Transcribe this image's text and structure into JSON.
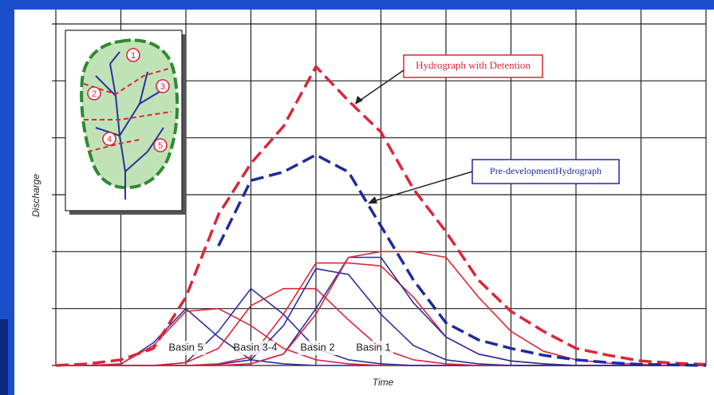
{
  "chart_data": {
    "type": "line",
    "xlabel": "Time",
    "ylabel": "Discharge",
    "xlim": [
      0,
      10
    ],
    "ylim": [
      0,
      6
    ],
    "grid": true,
    "x": [
      0,
      0.5,
      1,
      1.5,
      2,
      2.5,
      3,
      3.5,
      4,
      4.5,
      5,
      5.5,
      6,
      6.5,
      7,
      7.5,
      8,
      8.5,
      9,
      9.5,
      10
    ],
    "series": [
      {
        "name": "Hydrograph with Detention",
        "color": "#d9263a",
        "dashed": true,
        "values": [
          0,
          0.03,
          0.1,
          0.3,
          1.2,
          2.65,
          3.55,
          4.2,
          5.25,
          4.65,
          4.1,
          3.1,
          2.35,
          1.5,
          0.95,
          0.6,
          0.3,
          0.18,
          0.08,
          0.04,
          0.02
        ]
      },
      {
        "name": "Pre-developmentHydrograph",
        "color": "#1f2a9c",
        "dashed": true,
        "values": [
          null,
          null,
          null,
          null,
          null,
          2.1,
          3.25,
          3.4,
          3.7,
          3.4,
          2.45,
          1.5,
          0.75,
          0.45,
          0.3,
          0.18,
          0.1,
          0.05,
          0.02,
          0.01,
          0
        ]
      },
      {
        "name": "Basin 5",
        "color": "#2a2f9e",
        "dashed": false,
        "values": [
          0,
          0,
          0.02,
          0.4,
          1.0,
          0.5,
          0.1,
          0.03,
          0,
          0,
          0,
          0,
          0,
          0,
          0,
          0,
          0,
          0,
          0,
          0,
          0
        ]
      },
      {
        "color": "#d9263a",
        "dashed": false,
        "values": [
          0,
          0,
          0.03,
          0.35,
          0.95,
          1.0,
          0.7,
          0.3,
          0.1,
          0.03,
          0,
          0,
          0,
          0,
          0,
          0,
          0,
          0,
          0,
          0,
          0
        ]
      },
      {
        "name": "Basin 3-4",
        "color": "#2a2f9e",
        "dashed": false,
        "values": [
          0,
          0,
          0,
          0,
          0.05,
          0.6,
          1.35,
          0.9,
          0.3,
          0.1,
          0.03,
          0,
          0,
          0,
          0,
          0,
          0,
          0,
          0,
          0,
          0
        ]
      },
      {
        "color": "#d9263a",
        "dashed": false,
        "values": [
          0,
          0,
          0,
          0,
          0.05,
          0.3,
          1.05,
          1.35,
          1.35,
          0.8,
          0.3,
          0.1,
          0.03,
          0,
          0,
          0,
          0,
          0,
          0,
          0,
          0
        ]
      },
      {
        "name": "Basin 2",
        "color": "#2a2f9e",
        "dashed": false,
        "values": [
          0,
          0,
          0,
          0,
          0,
          0.02,
          0.1,
          0.7,
          1.7,
          1.6,
          0.9,
          0.35,
          0.1,
          0.03,
          0,
          0,
          0,
          0,
          0,
          0,
          0
        ]
      },
      {
        "color": "#d9263a",
        "dashed": false,
        "values": [
          0,
          0,
          0,
          0,
          0,
          0.03,
          0.15,
          0.9,
          1.8,
          1.8,
          1.75,
          1.2,
          0.5,
          0.2,
          0.08,
          0.03,
          0,
          0,
          0,
          0,
          0
        ]
      },
      {
        "name": "Basin 1",
        "color": "#2a2f9e",
        "dashed": false,
        "values": [
          0,
          0,
          0,
          0,
          0,
          0,
          0.03,
          0.2,
          1.0,
          1.9,
          1.9,
          1.1,
          0.5,
          0.2,
          0.08,
          0.03,
          0,
          0,
          0,
          0,
          0
        ]
      },
      {
        "color": "#d9263a",
        "dashed": false,
        "values": [
          0,
          0,
          0,
          0,
          0,
          0,
          0.03,
          0.2,
          0.9,
          1.9,
          2.0,
          2.0,
          1.9,
          1.2,
          0.6,
          0.25,
          0.1,
          0.04,
          0.02,
          0,
          0
        ]
      }
    ]
  },
  "inset": {
    "labels": [
      "1",
      "2",
      "3",
      "4",
      "5"
    ]
  }
}
